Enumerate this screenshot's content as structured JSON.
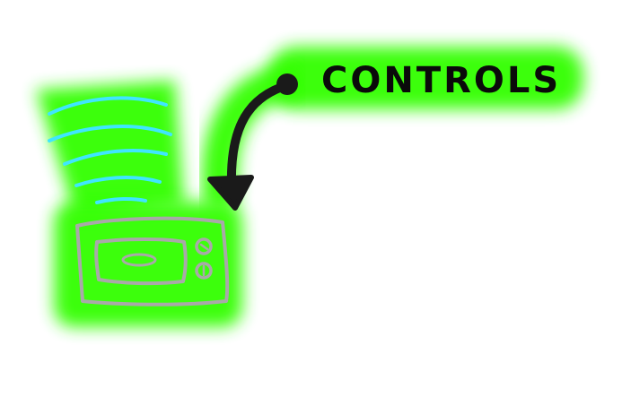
{
  "diagram": {
    "label": "CONTROLS",
    "colors": {
      "background": "#ffffff",
      "glow": "#33ff00",
      "signal_waves": "#3fe6ff",
      "device_outline": "#a9a9a9",
      "arrow": "#1a1a1a",
      "text": "#0a0a0a"
    },
    "elements": {
      "device": "microwave-oven-sketch",
      "waves": "signal-waves",
      "pointer": "curved-arrow"
    }
  }
}
